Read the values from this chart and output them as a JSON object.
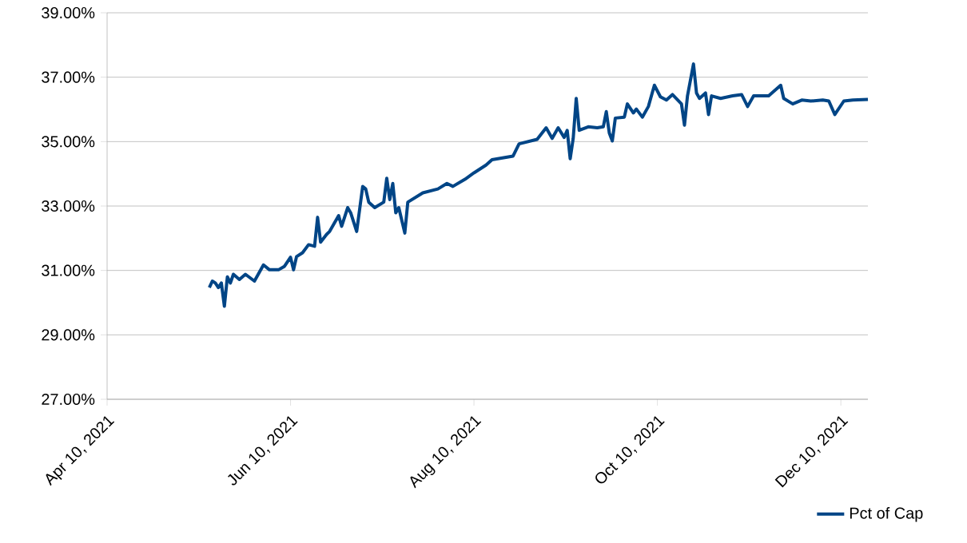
{
  "chart_data": {
    "type": "line",
    "x": [
      "2021-05-14",
      "2021-05-15",
      "2021-05-16",
      "2021-05-17",
      "2021-05-18",
      "2021-05-19",
      "2021-05-20",
      "2021-05-21",
      "2021-05-22",
      "2021-05-24",
      "2021-05-26",
      "2021-05-29",
      "2021-06-01",
      "2021-06-03",
      "2021-06-06",
      "2021-06-08",
      "2021-06-10",
      "2021-06-11",
      "2021-06-12",
      "2021-06-14",
      "2021-06-16",
      "2021-06-18",
      "2021-06-19",
      "2021-06-20",
      "2021-06-22",
      "2021-06-23",
      "2021-06-26",
      "2021-06-27",
      "2021-06-29",
      "2021-06-30",
      "2021-07-02",
      "2021-07-04",
      "2021-07-05",
      "2021-07-06",
      "2021-07-08",
      "2021-07-11",
      "2021-07-12",
      "2021-07-13",
      "2021-07-14",
      "2021-07-15",
      "2021-07-16",
      "2021-07-18",
      "2021-07-19",
      "2021-07-24",
      "2021-07-29",
      "2021-08-01",
      "2021-08-03",
      "2021-08-07",
      "2021-08-10",
      "2021-08-14",
      "2021-08-16",
      "2021-08-23",
      "2021-08-25",
      "2021-08-31",
      "2021-09-03",
      "2021-09-05",
      "2021-09-07",
      "2021-09-09",
      "2021-09-10",
      "2021-09-11",
      "2021-09-12",
      "2021-09-13",
      "2021-09-14",
      "2021-09-17",
      "2021-09-20",
      "2021-09-22",
      "2021-09-23",
      "2021-09-24",
      "2021-09-25",
      "2021-09-26",
      "2021-09-29",
      "2021-09-30",
      "2021-10-02",
      "2021-10-03",
      "2021-10-05",
      "2021-10-07",
      "2021-10-09",
      "2021-10-11",
      "2021-10-13",
      "2021-10-15",
      "2021-10-18",
      "2021-10-19",
      "2021-10-20",
      "2021-10-22",
      "2021-10-23",
      "2021-10-24",
      "2021-10-26",
      "2021-10-27",
      "2021-10-28",
      "2021-10-31",
      "2021-11-04",
      "2021-11-07",
      "2021-11-09",
      "2021-11-11",
      "2021-11-16",
      "2021-11-20",
      "2021-11-21",
      "2021-11-24",
      "2021-11-27",
      "2021-11-30",
      "2021-12-04",
      "2021-12-06",
      "2021-12-08",
      "2021-12-11",
      "2021-12-14",
      "2021-12-19"
    ],
    "series": [
      {
        "name": "Pct of Cap",
        "color": "#004586",
        "values": [
          30.47,
          30.67,
          30.61,
          30.47,
          30.61,
          29.89,
          30.8,
          30.61,
          30.88,
          30.72,
          30.88,
          30.67,
          31.17,
          31.02,
          31.02,
          31.13,
          31.41,
          31.02,
          31.43,
          31.55,
          31.8,
          31.75,
          32.65,
          31.88,
          32.12,
          32.21,
          32.7,
          32.37,
          32.95,
          32.79,
          32.21,
          33.61,
          33.53,
          33.12,
          32.95,
          33.12,
          33.86,
          33.2,
          33.7,
          32.79,
          32.95,
          32.16,
          33.12,
          33.41,
          33.53,
          33.7,
          33.61,
          33.83,
          34.03,
          34.27,
          34.44,
          34.55,
          34.93,
          35.07,
          35.43,
          35.1,
          35.43,
          35.13,
          35.35,
          34.47,
          35.1,
          36.34,
          35.35,
          35.46,
          35.43,
          35.46,
          35.93,
          35.27,
          35.02,
          35.73,
          35.76,
          36.17,
          35.89,
          36.01,
          35.76,
          36.09,
          36.75,
          36.39,
          36.29,
          36.46,
          36.17,
          35.51,
          36.42,
          37.41,
          36.51,
          36.34,
          36.51,
          35.84,
          36.42,
          36.34,
          36.42,
          36.46,
          36.09,
          36.42,
          36.42,
          36.75,
          36.34,
          36.17,
          36.29,
          36.26,
          36.29,
          36.26,
          35.84,
          36.26,
          36.29,
          36.31
        ]
      }
    ],
    "xlim": [
      "2021-04-10",
      "2021-12-19"
    ],
    "xticks": [
      {
        "value": "2021-04-10",
        "label": "Apr 10, 2021"
      },
      {
        "value": "2021-06-10",
        "label": "Jun 10, 2021"
      },
      {
        "value": "2021-08-10",
        "label": "Aug 10, 2021"
      },
      {
        "value": "2021-10-10",
        "label": "Oct 10, 2021"
      },
      {
        "value": "2021-12-10",
        "label": "Dec 10, 2021"
      }
    ],
    "ylim": [
      27,
      39
    ],
    "yticks": [
      {
        "value": 27,
        "label": "27.00%"
      },
      {
        "value": 29,
        "label": "29.00%"
      },
      {
        "value": 31,
        "label": "31.00%"
      },
      {
        "value": 33,
        "label": "33.00%"
      },
      {
        "value": 35,
        "label": "35.00%"
      },
      {
        "value": 37,
        "label": "37.00%"
      },
      {
        "value": 39,
        "label": "39.00%"
      }
    ],
    "grid": "y",
    "legend": "bottom right"
  }
}
